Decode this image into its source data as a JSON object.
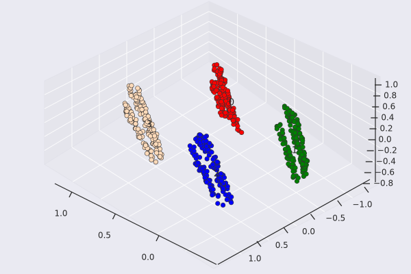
{
  "chart_data": {
    "type": "scatter",
    "projection": "3d",
    "grid": true,
    "axes": {
      "x": {
        "ticks": [
          "1.0",
          "0.5",
          "0.0"
        ]
      },
      "y": {
        "ticks": [
          "1.0",
          "0.5",
          "0.0",
          "−0.5",
          "−1.0"
        ]
      },
      "z": {
        "ticks": [
          "1.0",
          "0.8",
          "0.6",
          "0.4",
          "0.2",
          "0.0",
          "−0.2",
          "−0.4",
          "−0.6",
          "−0.8"
        ]
      }
    },
    "clusters": [
      {
        "label": "0",
        "color": "#ff0000"
      },
      {
        "label": "1",
        "color": "#008000"
      },
      {
        "label": "2",
        "color": "#0000ff"
      },
      {
        "label": "3",
        "color": "#ffdab9"
      }
    ]
  }
}
